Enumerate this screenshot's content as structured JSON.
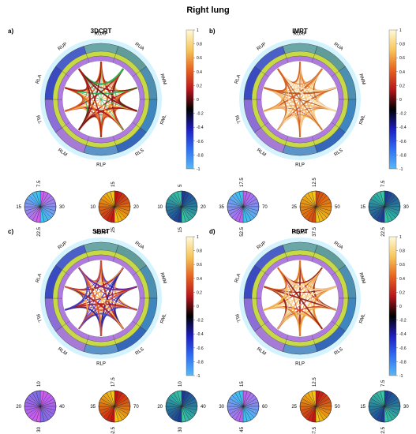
{
  "title": "Right lung",
  "ring_labels": [
    "RUAP",
    "RUA",
    "RMM",
    "RML",
    "RLS",
    "RLP",
    "RLM",
    "RLL",
    "RLA",
    "RUP"
  ],
  "ring_colors": {
    "outer": [
      "#6aa7a6",
      "#5f9c9a",
      "#4c8fb0",
      "#3d86c0",
      "#3568b8",
      "#5c94c9",
      "#a67bd6",
      "#8b6fd6",
      "#3a4ac0",
      "#4a5fc7"
    ],
    "middle": "#c7d944",
    "inner": "#b07be0",
    "halo": "#c8f0ff"
  },
  "colorbar": {
    "ticks": [
      "1",
      "0.8",
      "0.6",
      "0.4",
      "0.2",
      "0",
      "-0.2",
      "-0.4",
      "-0.6",
      "-0.8",
      "-1"
    ],
    "stops": [
      "#fff9d8",
      "#f7c75a",
      "#e8631f",
      "#b7161d",
      "#000000",
      "#1d1dbf",
      "#2f6df2",
      "#58b9f5"
    ]
  },
  "panels": [
    {
      "label": "a)",
      "name": "3DCRT",
      "edge_colors": [
        "#cf3b1f",
        "#e0701c",
        "#b21414",
        "#f6b040",
        "#22b14c",
        "#7a1010"
      ],
      "pies": [
        {
          "labels": [
            "7.5",
            "30",
            "22.5",
            "15"
          ],
          "base": "#d35cf0",
          "top": "#36c6f1"
        },
        {
          "labels": [
            "15",
            "20",
            "25",
            "10"
          ],
          "base": "#c51212",
          "top": "#f5c614"
        },
        {
          "labels": [
            "5",
            "20",
            "15",
            "10"
          ],
          "base": "#1c3a96",
          "top": "#35c7a6"
        }
      ]
    },
    {
      "label": "b)",
      "name": "IMRT",
      "edge_colors": [
        "#f7c98a",
        "#e6952b",
        "#d65a1d",
        "#f2b36a",
        "#b8581a",
        "#fbe1b3"
      ],
      "pies": [
        {
          "labels": [
            "17.5",
            "70",
            "52.5",
            "35"
          ],
          "base": "#c060f0",
          "top": "#36c6f1"
        },
        {
          "labels": [
            "12.5",
            "50",
            "37.5",
            "25"
          ],
          "base": "#d84a12",
          "top": "#f5c614"
        },
        {
          "labels": [
            "7.5",
            "30",
            "22.5",
            "15"
          ],
          "base": "#1c3a96",
          "top": "#35c7a6"
        }
      ]
    },
    {
      "label": "c)",
      "name": "SBRT",
      "edge_colors": [
        "#1c1c8c",
        "#3f3fcf",
        "#d9502b",
        "#b21a17",
        "#f3aa3f",
        "#6e1e9a"
      ],
      "pies": [
        {
          "labels": [
            "10",
            "40",
            "30",
            "20"
          ],
          "base": "#d35cf0",
          "top": "#7a6ee8"
        },
        {
          "labels": [
            "17.5",
            "70",
            "52.5",
            "35"
          ],
          "base": "#c51212",
          "top": "#f5c614"
        },
        {
          "labels": [
            "10",
            "40",
            "30",
            "20"
          ],
          "base": "#1c3a96",
          "top": "#35c7a6"
        }
      ]
    },
    {
      "label": "d)",
      "name": "PSPT",
      "edge_colors": [
        "#e07f22",
        "#f6b650",
        "#d43a1b",
        "#fbd78d",
        "#8f1a10",
        "#f4c78e"
      ],
      "pies": [
        {
          "labels": [
            "15",
            "60",
            "45",
            "30"
          ],
          "base": "#c060f0",
          "top": "#36c6f1"
        },
        {
          "labels": [
            "12.5",
            "50",
            "37.5",
            "25"
          ],
          "base": "#c51212",
          "top": "#f5c614"
        },
        {
          "labels": [
            "7.5",
            "30",
            "22.5",
            "15"
          ],
          "base": "#1c3a96",
          "top": "#35c7a6"
        }
      ]
    }
  ],
  "chart_data": {
    "type": "chord",
    "title": "Right lung",
    "nodes": [
      "RUAP",
      "RUA",
      "RMM",
      "RML",
      "RLS",
      "RLP",
      "RLM",
      "RLL",
      "RLA",
      "RUP"
    ],
    "colorbar_range": [
      -1,
      1
    ],
    "subplots": [
      "3DCRT",
      "IMRT",
      "SBRT",
      "PSPT"
    ]
  }
}
